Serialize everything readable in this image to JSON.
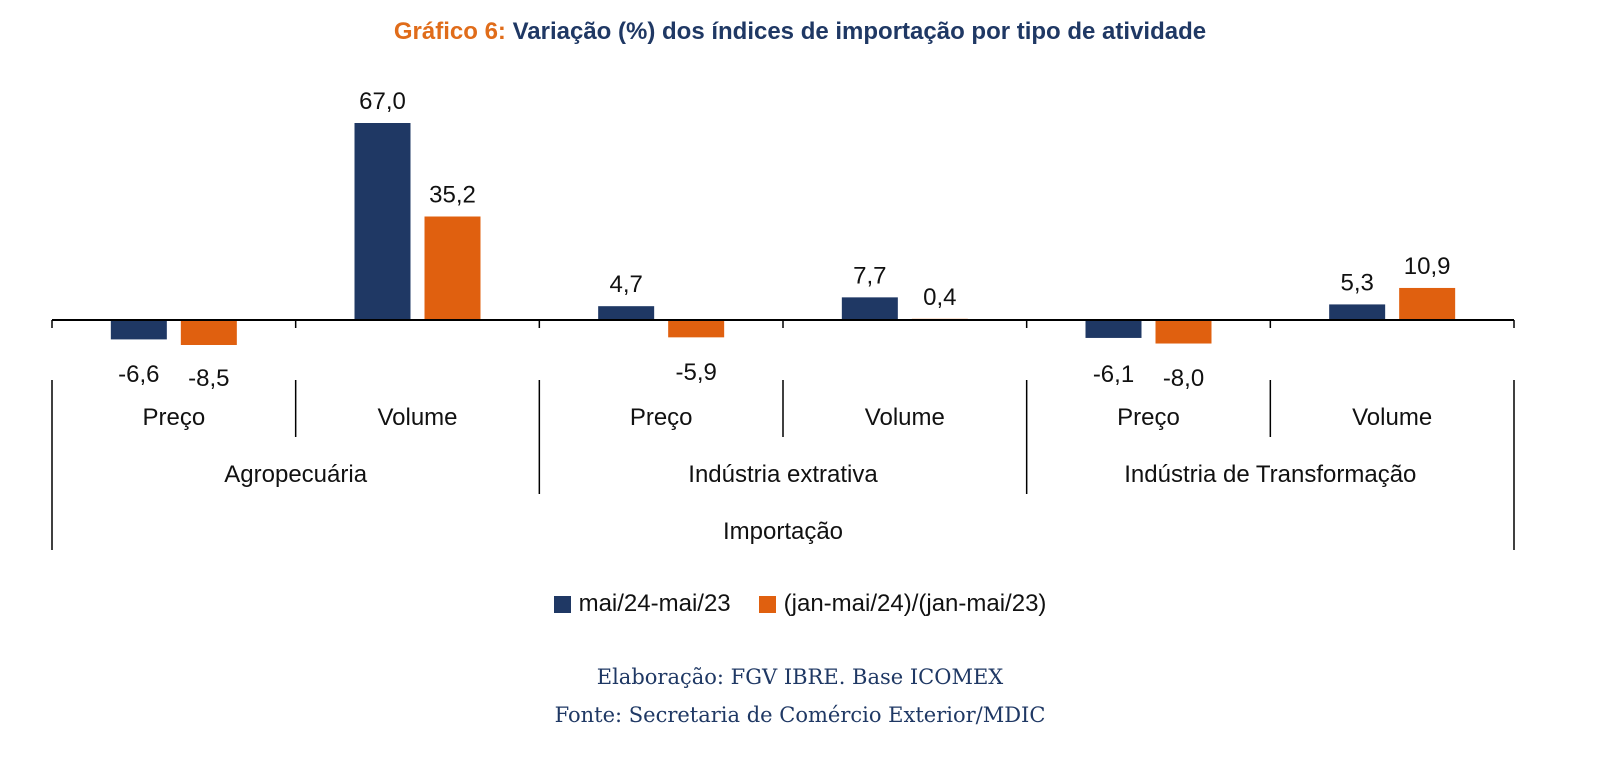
{
  "title": {
    "prefix": "Gráfico 6:",
    "main": "Variação (%) dos índices de importação por tipo de atividade"
  },
  "colors": {
    "series1": "#1f3864",
    "series2": "#e0600f",
    "axis": "#000000",
    "title_prefix": "#e06c1a",
    "title_main": "#1f3864"
  },
  "chart_data": {
    "type": "bar",
    "categories": [
      "Preço",
      "Volume",
      "Preço",
      "Volume",
      "Preço",
      "Volume"
    ],
    "groups": [
      "Agropecuária",
      "Indústria extrativa",
      "Indústria de Transformação"
    ],
    "super_group": "Importação",
    "series": [
      {
        "name": "mai/24-mai/23",
        "values": [
          -6.6,
          67.0,
          4.7,
          7.7,
          -6.1,
          5.3
        ],
        "labels": [
          "-6,6",
          "67,0",
          "4,7",
          "7,7",
          "-6,1",
          "5,3"
        ]
      },
      {
        "name": "(jan-mai/24)/(jan-mai/23)",
        "values": [
          -8.5,
          35.2,
          -5.9,
          0.4,
          -8.0,
          10.9
        ],
        "labels": [
          "-8,5",
          "35,2",
          "-5,9",
          "0,4",
          "-8,0",
          "10,9"
        ]
      }
    ],
    "ylim": [
      -10,
      75
    ],
    "grid": false,
    "legend": "bottom"
  },
  "source": {
    "line1": "Elaboração: FGV IBRE. Base ICOMEX",
    "line2": "Fonte: Secretaria de Comércio Exterior/MDIC"
  }
}
